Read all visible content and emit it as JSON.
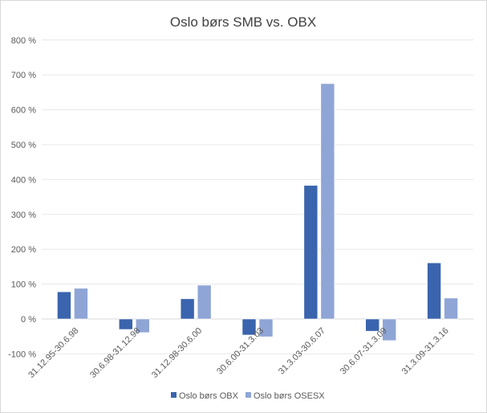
{
  "chart_data": {
    "type": "bar",
    "title": "Oslo børs SMB vs. OBX",
    "xlabel": "",
    "ylabel": "",
    "ylim": [
      -100,
      800
    ],
    "yticks": [
      -100,
      0,
      100,
      200,
      300,
      400,
      500,
      600,
      700,
      800
    ],
    "ytick_labels": [
      "-100 %",
      "0 %",
      "100 %",
      "200 %",
      "300 %",
      "400 %",
      "500 %",
      "600 %",
      "700 %",
      "800 %"
    ],
    "grid": true,
    "legend_position": "bottom",
    "categories": [
      "31.12.95-30.6.98",
      "30.6.98-31.12.98",
      "31.12.98-30.6.00",
      "30.6.00-31.3.03",
      "31.3.03-30.6.07",
      "30.6.07-31.3.09",
      "31.3.09-31.3.16"
    ],
    "series": [
      {
        "name": "Oslo børs OBX",
        "color": "#3a64ad",
        "values": [
          78,
          -30,
          58,
          -46,
          383,
          -35,
          161
        ]
      },
      {
        "name": "Oslo børs OSESX",
        "color": "#8fa5d6",
        "values": [
          88,
          -39,
          97,
          -51,
          675,
          -62,
          60
        ]
      }
    ]
  }
}
